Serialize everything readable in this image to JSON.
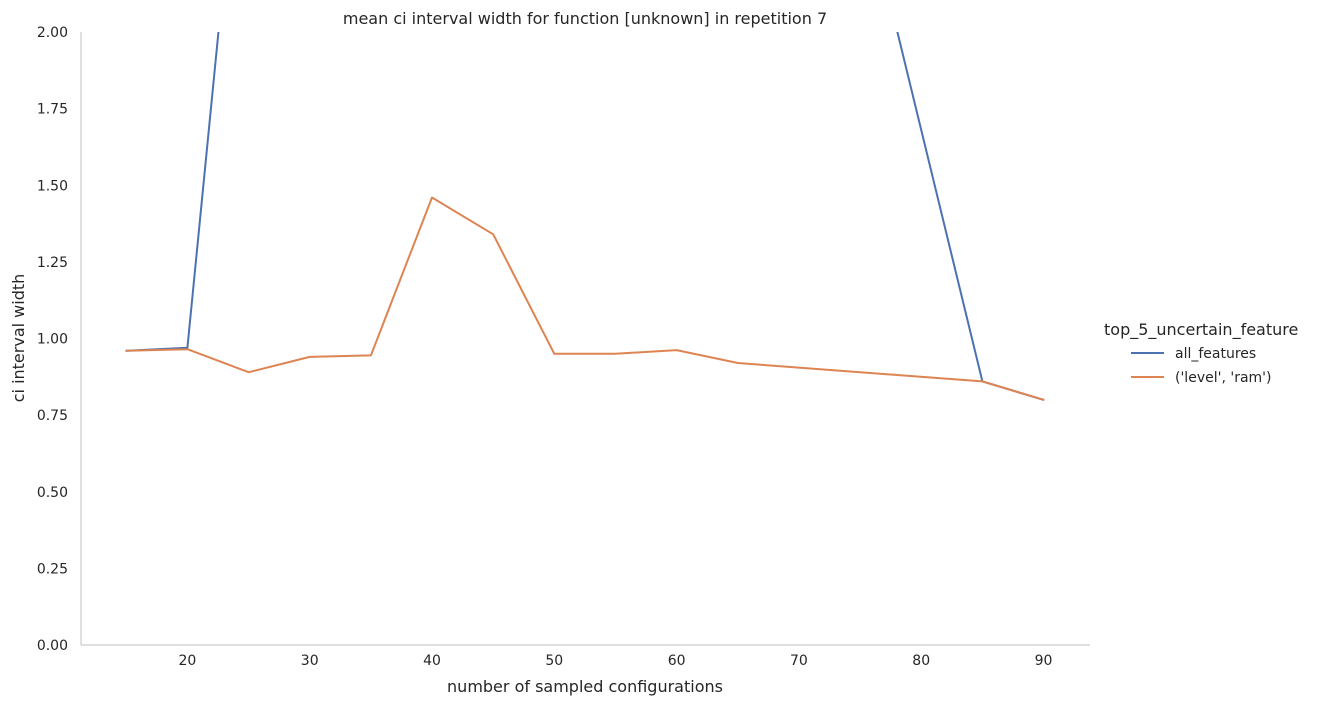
{
  "chart_data": {
    "type": "line",
    "title": "mean ci interval width for function [unknown] in repetition 7",
    "xlabel": "number of sampled configurations",
    "ylabel": "ci interval width",
    "xlim": [
      11.3,
      93.8
    ],
    "ylim": [
      0,
      2.0
    ],
    "xticks": [
      20,
      30,
      40,
      50,
      60,
      70,
      80,
      90
    ],
    "yticks": [
      0.0,
      0.25,
      0.5,
      0.75,
      1.0,
      1.25,
      1.5,
      1.75,
      2.0
    ],
    "ytick_labels": [
      "0.00",
      "0.25",
      "0.50",
      "0.75",
      "1.00",
      "1.25",
      "1.50",
      "1.75",
      "2.00"
    ],
    "grid": false,
    "legend": {
      "title": "top_5_uncertain_feature",
      "position": "right"
    },
    "series": [
      {
        "name": "all_features",
        "color": "#4c72b0",
        "x": [
          15,
          20,
          25,
          75,
          85,
          90
        ],
        "y": [
          0.96,
          0.97,
          3.0,
          2.5,
          0.86,
          0.8
        ]
      },
      {
        "name": "('level', 'ram')",
        "color": "#dd8452",
        "x": [
          15,
          20,
          25,
          30,
          35,
          40,
          45,
          50,
          55,
          60,
          65,
          85,
          90
        ],
        "y": [
          0.96,
          0.965,
          0.89,
          0.94,
          0.945,
          1.46,
          1.34,
          0.95,
          0.95,
          0.962,
          0.92,
          0.86,
          0.8
        ]
      }
    ]
  }
}
